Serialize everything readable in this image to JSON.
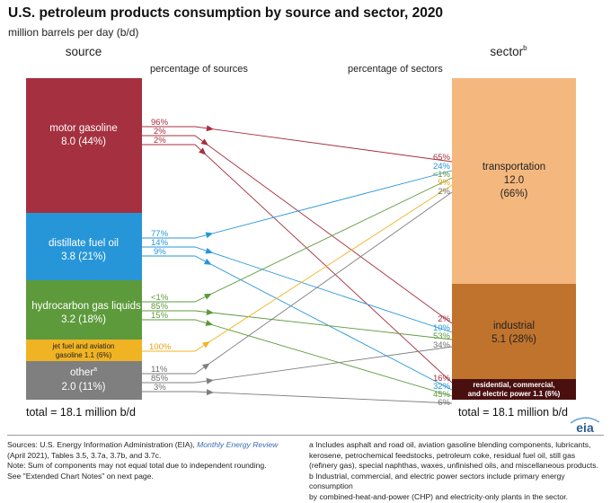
{
  "title": "U.S. petroleum products consumption by source and sector, 2020",
  "subtitle": "million barrels per day (b/d)",
  "headers": {
    "source": "source",
    "sector": "sector",
    "sector_sup": "b",
    "pct_sources": "percentage of sources",
    "pct_sectors": "percentage of sectors"
  },
  "sources": [
    {
      "name": "motor gasoline",
      "value_line": "8.0 (44%)",
      "color": "#a5303f"
    },
    {
      "name": "distillate fuel oil",
      "value_line": "3.8 (21%)",
      "color": "#2796d8"
    },
    {
      "name": "hydrocarbon gas liquids",
      "value_line": "3.2 (18%)",
      "color": "#5d9a3c"
    },
    {
      "name": "jet fuel and aviation",
      "value_line": "gasoline  1.1 (6%)",
      "color": "#f0b323"
    },
    {
      "name": "other",
      "name_sup": "a",
      "value_line": "2.0 (11%)",
      "color": "#7f7f7f"
    }
  ],
  "sectors": [
    {
      "name": "transportation",
      "value": "12.0",
      "share": "(66%)",
      "color": "#f4b87f"
    },
    {
      "name": "industrial",
      "value": "5.1  (28%)",
      "color": "#c0732d"
    },
    {
      "name": "residential, commercial,",
      "line2": "and electric power  1.1  (6%)",
      "color": "#4a1010"
    }
  ],
  "flows": [
    {
      "from": "motor gasoline",
      "to": "transportation",
      "source_pct": "96%",
      "sector_pct": "65%"
    },
    {
      "from": "motor gasoline",
      "to": "industrial",
      "source_pct": "2%",
      "sector_pct": "2%"
    },
    {
      "from": "motor gasoline",
      "to": "residential, commercial, and electric power",
      "source_pct": "2%",
      "sector_pct": "16%"
    },
    {
      "from": "distillate fuel oil",
      "to": "transportation",
      "source_pct": "77%",
      "sector_pct": "24%"
    },
    {
      "from": "distillate fuel oil",
      "to": "industrial",
      "source_pct": "14%",
      "sector_pct": "10%"
    },
    {
      "from": "distillate fuel oil",
      "to": "residential, commercial, and electric power",
      "source_pct": "9%",
      "sector_pct": "32%"
    },
    {
      "from": "hydrocarbon gas liquids",
      "to": "transportation",
      "source_pct": "<1%",
      "sector_pct": "<1%"
    },
    {
      "from": "hydrocarbon gas liquids",
      "to": "industrial",
      "source_pct": "85%",
      "sector_pct": "53%"
    },
    {
      "from": "hydrocarbon gas liquids",
      "to": "residential, commercial, and electric power",
      "source_pct": "15%",
      "sector_pct": "45%"
    },
    {
      "from": "jet fuel and aviation gasoline",
      "to": "transportation",
      "source_pct": "100%",
      "sector_pct": "9%"
    },
    {
      "from": "other",
      "to": "transportation",
      "source_pct": "11%",
      "sector_pct": "2%"
    },
    {
      "from": "other",
      "to": "industrial",
      "source_pct": "85%",
      "sector_pct": "34%"
    },
    {
      "from": "other",
      "to": "residential, commercial, and electric power",
      "source_pct": "3%",
      "sector_pct": "6%"
    }
  ],
  "totals": {
    "source": "total = 18.1 million b/d",
    "sector": "total = 18.1 million b/d"
  },
  "footer": {
    "sources_prefix": "Sources: U.S. Energy Information Administration (EIA), ",
    "sources_link": "Monthly Energy Review",
    "sources_line2": "(April 2021), Tables 3.5, 3.7a, 3.7b, and 3.7c.",
    "note1": "Note: Sum of components may not equal total due to independent rounding.",
    "note2": "See \"Extended Chart Notes\" on next page.",
    "a_line1": "a Includes asphalt and road oil, aviation gasoline blending components, lubricants,",
    "a_line2": "kerosene, petrochemical feedstocks, petroleum coke, residual fuel oil, still gas",
    "a_line3": "(refinery gas), special naphthas, waxes, unfinished oils, and miscellaneous products.",
    "b_line1": "b Industrial, commercial, and electric power sectors include primary energy consumption",
    "b_line2": "by combined-heat-and-power (CHP) and electricity-only plants in the sector."
  },
  "logo_text": "eia"
}
